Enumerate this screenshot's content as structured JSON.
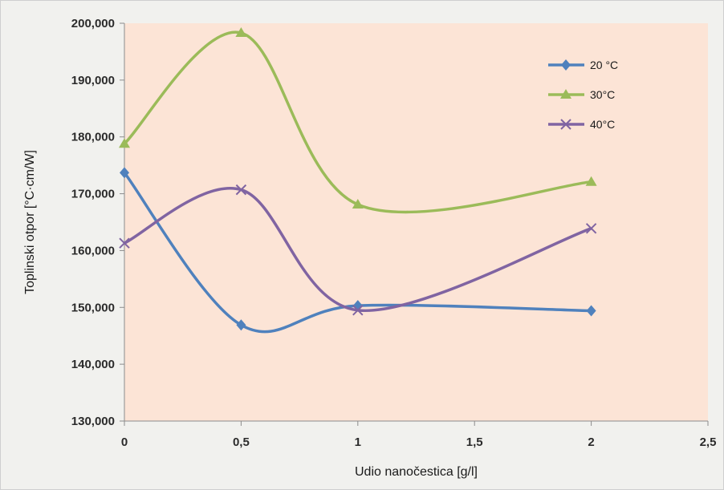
{
  "chart_data": {
    "type": "line",
    "title": "",
    "xlabel": "Udio nanočestica  [g/l]",
    "ylabel": "Toplinski otpor [°C·cm/W]",
    "xlim": [
      0,
      2.5
    ],
    "ylim": [
      130000,
      200000
    ],
    "x_ticks": [
      0,
      0.5,
      1,
      1.5,
      2,
      2.5
    ],
    "x_tick_labels": [
      "0",
      "0,5",
      "1",
      "1,5",
      "2",
      "2,5"
    ],
    "y_ticks": [
      130000,
      140000,
      150000,
      160000,
      170000,
      180000,
      190000,
      200000
    ],
    "y_tick_labels": [
      "130,000",
      "140,000",
      "150,000",
      "160,000",
      "170,000",
      "180,000",
      "190,000",
      "200,000"
    ],
    "grid": false,
    "smooth": true,
    "legend_position": "top-right",
    "plot_background": "#fce4d6",
    "x": [
      0,
      0.5,
      1,
      2
    ],
    "series": [
      {
        "name": "20 °C",
        "values": [
          173700,
          146900,
          150300,
          149400
        ],
        "color": "#4f81bd",
        "marker": "diamond"
      },
      {
        "name": "30°C",
        "values": [
          178800,
          198300,
          168100,
          172100
        ],
        "color": "#9bbb59",
        "marker": "triangle"
      },
      {
        "name": "40°C",
        "values": [
          161300,
          170700,
          149500,
          163900
        ],
        "color": "#8064a2",
        "marker": "x"
      }
    ]
  }
}
